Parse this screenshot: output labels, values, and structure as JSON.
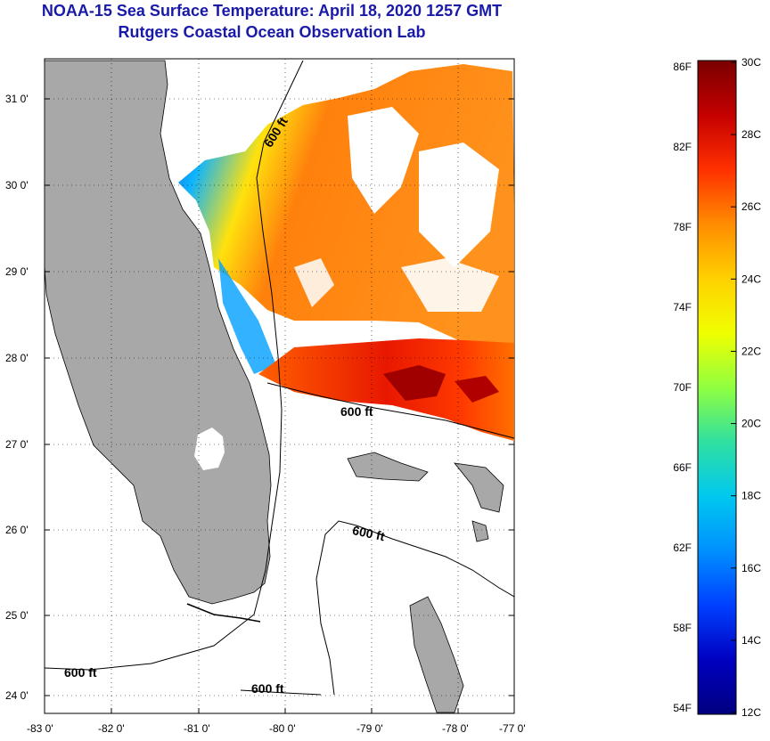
{
  "header": {
    "title": "NOAA-15 Sea Surface Temperature:  April 18, 2020 1257 GMT",
    "subtitle": "Rutgers Coastal Ocean Observation Lab"
  },
  "map": {
    "lat_ticks": [
      "31 0'",
      "30 0'",
      "29 0'",
      "28 0'",
      "27 0'",
      "26 0'",
      "25 0'",
      "24 0'"
    ],
    "lon_ticks": [
      "-83 0'",
      "-82 0'",
      "-81 0'",
      "-80 0'",
      "-79 0'",
      "-78 0'",
      "-77 0'"
    ],
    "contour_labels": [
      "600 ft",
      "600 ft",
      "600 ft",
      "600 ft",
      "600 ft"
    ],
    "colors": {
      "land": "#a8a8a8",
      "cloud": "#ffffff",
      "coast": "#000000"
    }
  },
  "colorbar": {
    "f_labels": [
      "86F",
      "82F",
      "78F",
      "74F",
      "70F",
      "66F",
      "62F",
      "58F",
      "54F"
    ],
    "c_labels": [
      "30C",
      "28C",
      "26C",
      "24C",
      "22C",
      "20C",
      "18C",
      "16C",
      "14C",
      "12C"
    ],
    "gradient_colors": [
      "#7a0000",
      "#c40000",
      "#ff3000",
      "#ff8c00",
      "#ffd000",
      "#f0ff00",
      "#90ff40",
      "#30e0a0",
      "#00c8f0",
      "#0090ff",
      "#0040ff",
      "#0000c0",
      "#000080"
    ]
  }
}
